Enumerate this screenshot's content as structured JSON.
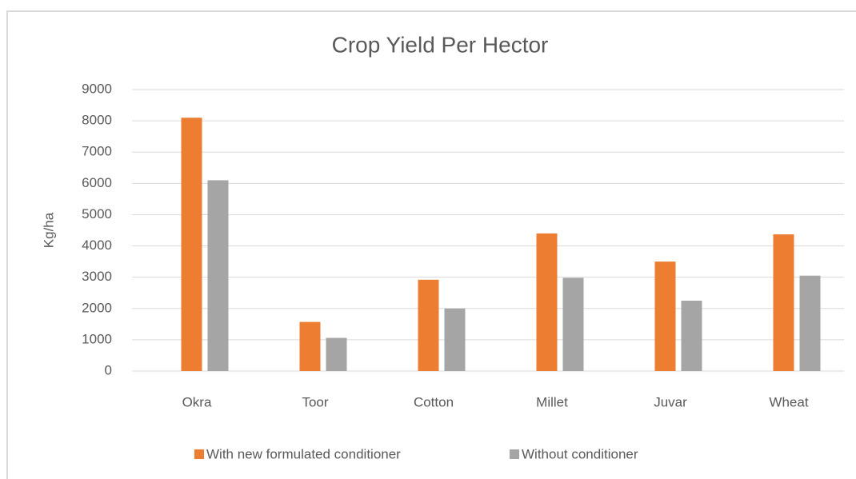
{
  "chart_data": {
    "type": "bar",
    "title": "Crop Yield Per Hector",
    "y_label": "Kg/ha",
    "categories": [
      "Okra",
      "Toor",
      "Cotton",
      "Millet",
      "Juvar",
      "Wheat"
    ],
    "series": [
      {
        "name": "With new formulated conditioner",
        "color": "#ed7d31",
        "values": [
          8100,
          1570,
          2920,
          4400,
          3500,
          4370
        ]
      },
      {
        "name": "Without conditioner",
        "color": "#a5a5a5",
        "values": [
          6100,
          1060,
          2000,
          2980,
          2250,
          3050
        ]
      }
    ],
    "ylim": [
      0,
      9000
    ],
    "yticks": [
      0,
      1000,
      2000,
      3000,
      4000,
      5000,
      6000,
      7000,
      8000,
      9000
    ],
    "grid": true,
    "legend": "bottom"
  }
}
